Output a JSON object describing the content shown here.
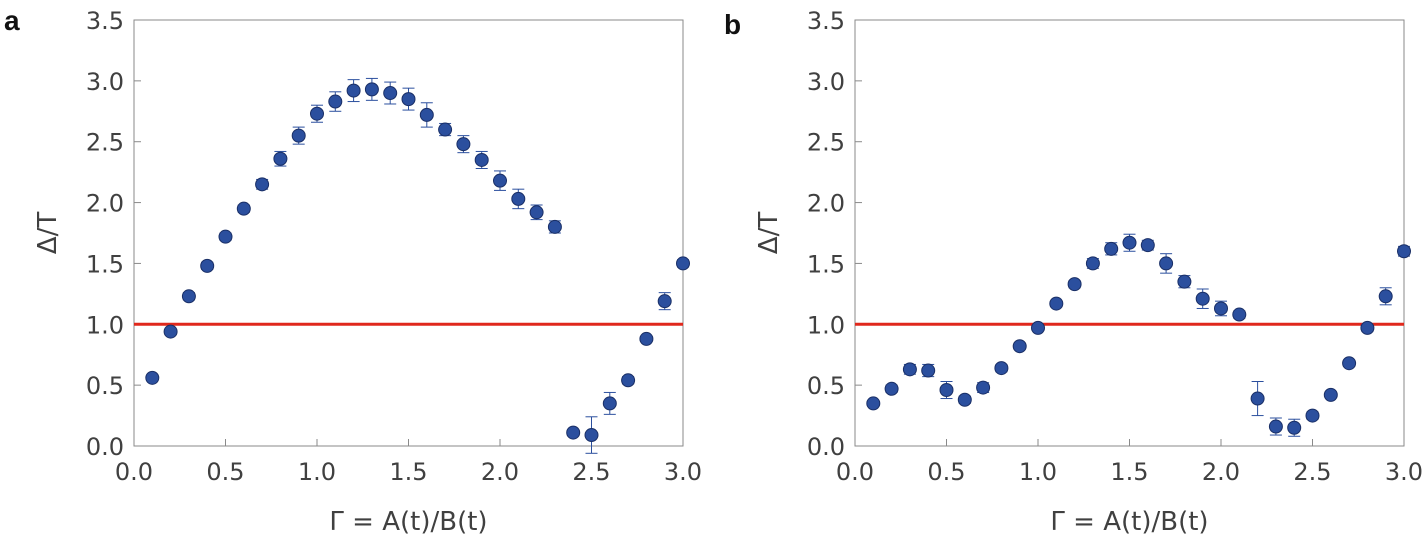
{
  "chart_data": [
    {
      "type": "scatter",
      "panel_label": "a",
      "xlabel": "Γ = A(t)/B(t)",
      "ylabel": "Δ/T",
      "xlim": [
        0.0,
        3.0
      ],
      "ylim": [
        0.0,
        3.5
      ],
      "xticks": [
        "0.0",
        "0.5",
        "1.0",
        "1.5",
        "2.0",
        "2.5",
        "3.0"
      ],
      "yticks": [
        "0.0",
        "0.5",
        "1.0",
        "1.5",
        "2.0",
        "2.5",
        "3.0",
        "3.5"
      ],
      "grid": false,
      "reference_line": {
        "y": 1.0,
        "color": "#e0281c"
      },
      "marker_color": "#2b4f9e",
      "points": [
        {
          "x": 0.1,
          "y": 0.56,
          "err": 0.02
        },
        {
          "x": 0.2,
          "y": 0.94,
          "err": 0.02
        },
        {
          "x": 0.3,
          "y": 1.23,
          "err": 0.03
        },
        {
          "x": 0.4,
          "y": 1.48,
          "err": 0.03
        },
        {
          "x": 0.5,
          "y": 1.72,
          "err": 0.03
        },
        {
          "x": 0.6,
          "y": 1.95,
          "err": 0.03
        },
        {
          "x": 0.7,
          "y": 2.15,
          "err": 0.04
        },
        {
          "x": 0.8,
          "y": 2.36,
          "err": 0.06
        },
        {
          "x": 0.9,
          "y": 2.55,
          "err": 0.07
        },
        {
          "x": 1.0,
          "y": 2.73,
          "err": 0.07
        },
        {
          "x": 1.1,
          "y": 2.83,
          "err": 0.08
        },
        {
          "x": 1.2,
          "y": 2.92,
          "err": 0.09
        },
        {
          "x": 1.3,
          "y": 2.93,
          "err": 0.09
        },
        {
          "x": 1.4,
          "y": 2.9,
          "err": 0.09
        },
        {
          "x": 1.5,
          "y": 2.85,
          "err": 0.09
        },
        {
          "x": 1.6,
          "y": 2.72,
          "err": 0.1
        },
        {
          "x": 1.7,
          "y": 2.6,
          "err": 0.05
        },
        {
          "x": 1.8,
          "y": 2.48,
          "err": 0.07
        },
        {
          "x": 1.9,
          "y": 2.35,
          "err": 0.07
        },
        {
          "x": 2.0,
          "y": 2.18,
          "err": 0.08
        },
        {
          "x": 2.1,
          "y": 2.03,
          "err": 0.08
        },
        {
          "x": 2.2,
          "y": 1.92,
          "err": 0.06
        },
        {
          "x": 2.3,
          "y": 1.8,
          "err": 0.05
        },
        {
          "x": 2.4,
          "y": 0.11,
          "err": 0.02
        },
        {
          "x": 2.5,
          "y": 0.09,
          "err": 0.15
        },
        {
          "x": 2.6,
          "y": 0.35,
          "err": 0.09
        },
        {
          "x": 2.7,
          "y": 0.54,
          "err": 0.03
        },
        {
          "x": 2.8,
          "y": 0.88,
          "err": 0.02
        },
        {
          "x": 2.9,
          "y": 1.19,
          "err": 0.07
        },
        {
          "x": 3.0,
          "y": 1.5,
          "err": 0.03
        }
      ]
    },
    {
      "type": "scatter",
      "panel_label": "b",
      "xlabel": "Γ = A(t)/B(t)",
      "ylabel": "Δ/T",
      "xlim": [
        0.0,
        3.0
      ],
      "ylim": [
        0.0,
        3.5
      ],
      "xticks": [
        "0.0",
        "0.5",
        "1.0",
        "1.5",
        "2.0",
        "2.5",
        "3.0"
      ],
      "yticks": [
        "0.0",
        "0.5",
        "1.0",
        "1.5",
        "2.0",
        "2.5",
        "3.0",
        "3.5"
      ],
      "grid": false,
      "reference_line": {
        "y": 1.0,
        "color": "#e0281c"
      },
      "marker_color": "#2b4f9e",
      "points": [
        {
          "x": 0.1,
          "y": 0.35,
          "err": 0.02
        },
        {
          "x": 0.2,
          "y": 0.47,
          "err": 0.03
        },
        {
          "x": 0.3,
          "y": 0.63,
          "err": 0.04
        },
        {
          "x": 0.4,
          "y": 0.62,
          "err": 0.05
        },
        {
          "x": 0.5,
          "y": 0.46,
          "err": 0.07
        },
        {
          "x": 0.6,
          "y": 0.38,
          "err": 0.03
        },
        {
          "x": 0.7,
          "y": 0.48,
          "err": 0.04
        },
        {
          "x": 0.8,
          "y": 0.64,
          "err": 0.03
        },
        {
          "x": 0.9,
          "y": 0.82,
          "err": 0.02
        },
        {
          "x": 1.0,
          "y": 0.97,
          "err": 0.02
        },
        {
          "x": 1.1,
          "y": 1.17,
          "err": 0.02
        },
        {
          "x": 1.2,
          "y": 1.33,
          "err": 0.03
        },
        {
          "x": 1.3,
          "y": 1.5,
          "err": 0.04
        },
        {
          "x": 1.4,
          "y": 1.62,
          "err": 0.05
        },
        {
          "x": 1.5,
          "y": 1.67,
          "err": 0.07
        },
        {
          "x": 1.6,
          "y": 1.65,
          "err": 0.04
        },
        {
          "x": 1.7,
          "y": 1.5,
          "err": 0.08
        },
        {
          "x": 1.8,
          "y": 1.35,
          "err": 0.05
        },
        {
          "x": 1.9,
          "y": 1.21,
          "err": 0.08
        },
        {
          "x": 2.0,
          "y": 1.13,
          "err": 0.06
        },
        {
          "x": 2.1,
          "y": 1.08,
          "err": 0.03
        },
        {
          "x": 2.2,
          "y": 0.39,
          "err": 0.14
        },
        {
          "x": 2.3,
          "y": 0.16,
          "err": 0.07
        },
        {
          "x": 2.4,
          "y": 0.15,
          "err": 0.07
        },
        {
          "x": 2.5,
          "y": 0.25,
          "err": 0.03
        },
        {
          "x": 2.6,
          "y": 0.42,
          "err": 0.02
        },
        {
          "x": 2.7,
          "y": 0.68,
          "err": 0.02
        },
        {
          "x": 2.8,
          "y": 0.97,
          "err": 0.03
        },
        {
          "x": 2.9,
          "y": 1.23,
          "err": 0.07
        },
        {
          "x": 3.0,
          "y": 1.6,
          "err": 0.04
        }
      ]
    }
  ]
}
